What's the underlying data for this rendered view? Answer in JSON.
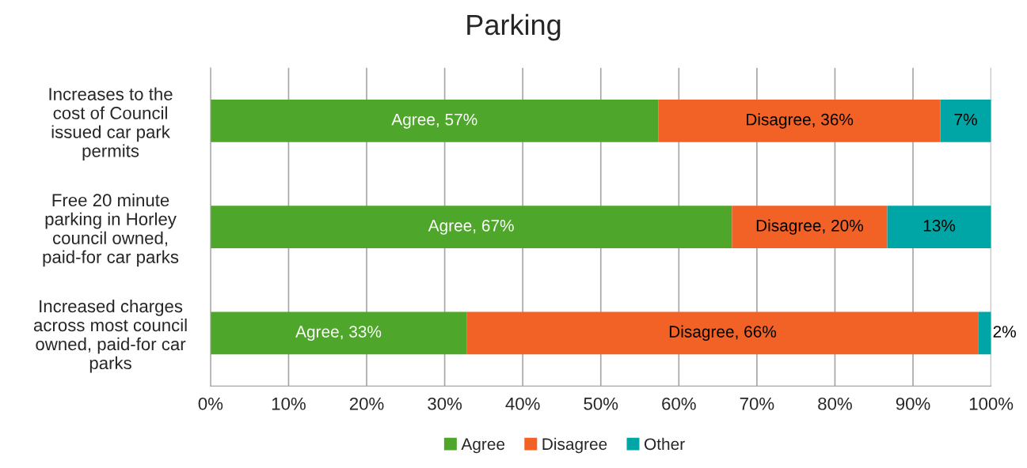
{
  "chart_data": {
    "type": "bar",
    "title": "Parking",
    "orientation": "horizontal",
    "stacked": true,
    "categories": [
      "Increases to the\ncost of Council\nissued car park\npermits",
      "Free 20 minute\nparking in Horley\ncouncil owned,\npaid-for car parks",
      "Increased charges\nacross most council\nowned, paid-for car\nparks"
    ],
    "series": [
      {
        "name": "Agree",
        "color": "#4ea72a",
        "values": [
          57.4,
          66.8,
          32.8
        ],
        "value_labels": [
          "Agree, 57%",
          "Agree, 67%",
          "Agree, 33%"
        ]
      },
      {
        "name": "Disagree",
        "color": "#f26125",
        "values": [
          36.1,
          19.9,
          65.6
        ],
        "value_labels": [
          "Disagree, 36%",
          "Disagree, 20%",
          "Disagree, 66%"
        ]
      },
      {
        "name": "Other",
        "color": "#00a6a6",
        "values": [
          6.5,
          13.3,
          1.6
        ],
        "value_labels": [
          "7%",
          "13%",
          "2%"
        ]
      }
    ],
    "xlim": [
      0,
      100
    ],
    "xticks": [
      {
        "value": 0,
        "label": "0%"
      },
      {
        "value": 10,
        "label": "10%"
      },
      {
        "value": 20,
        "label": "20%"
      },
      {
        "value": 30,
        "label": "30%"
      },
      {
        "value": 40,
        "label": "40%"
      },
      {
        "value": 50,
        "label": "50%"
      },
      {
        "value": 60,
        "label": "60%"
      },
      {
        "value": 70,
        "label": "70%"
      },
      {
        "value": 80,
        "label": "80%"
      },
      {
        "value": 90,
        "label": "90%"
      },
      {
        "value": 100,
        "label": "100%"
      }
    ],
    "grid": "x",
    "legend": "bottom"
  }
}
